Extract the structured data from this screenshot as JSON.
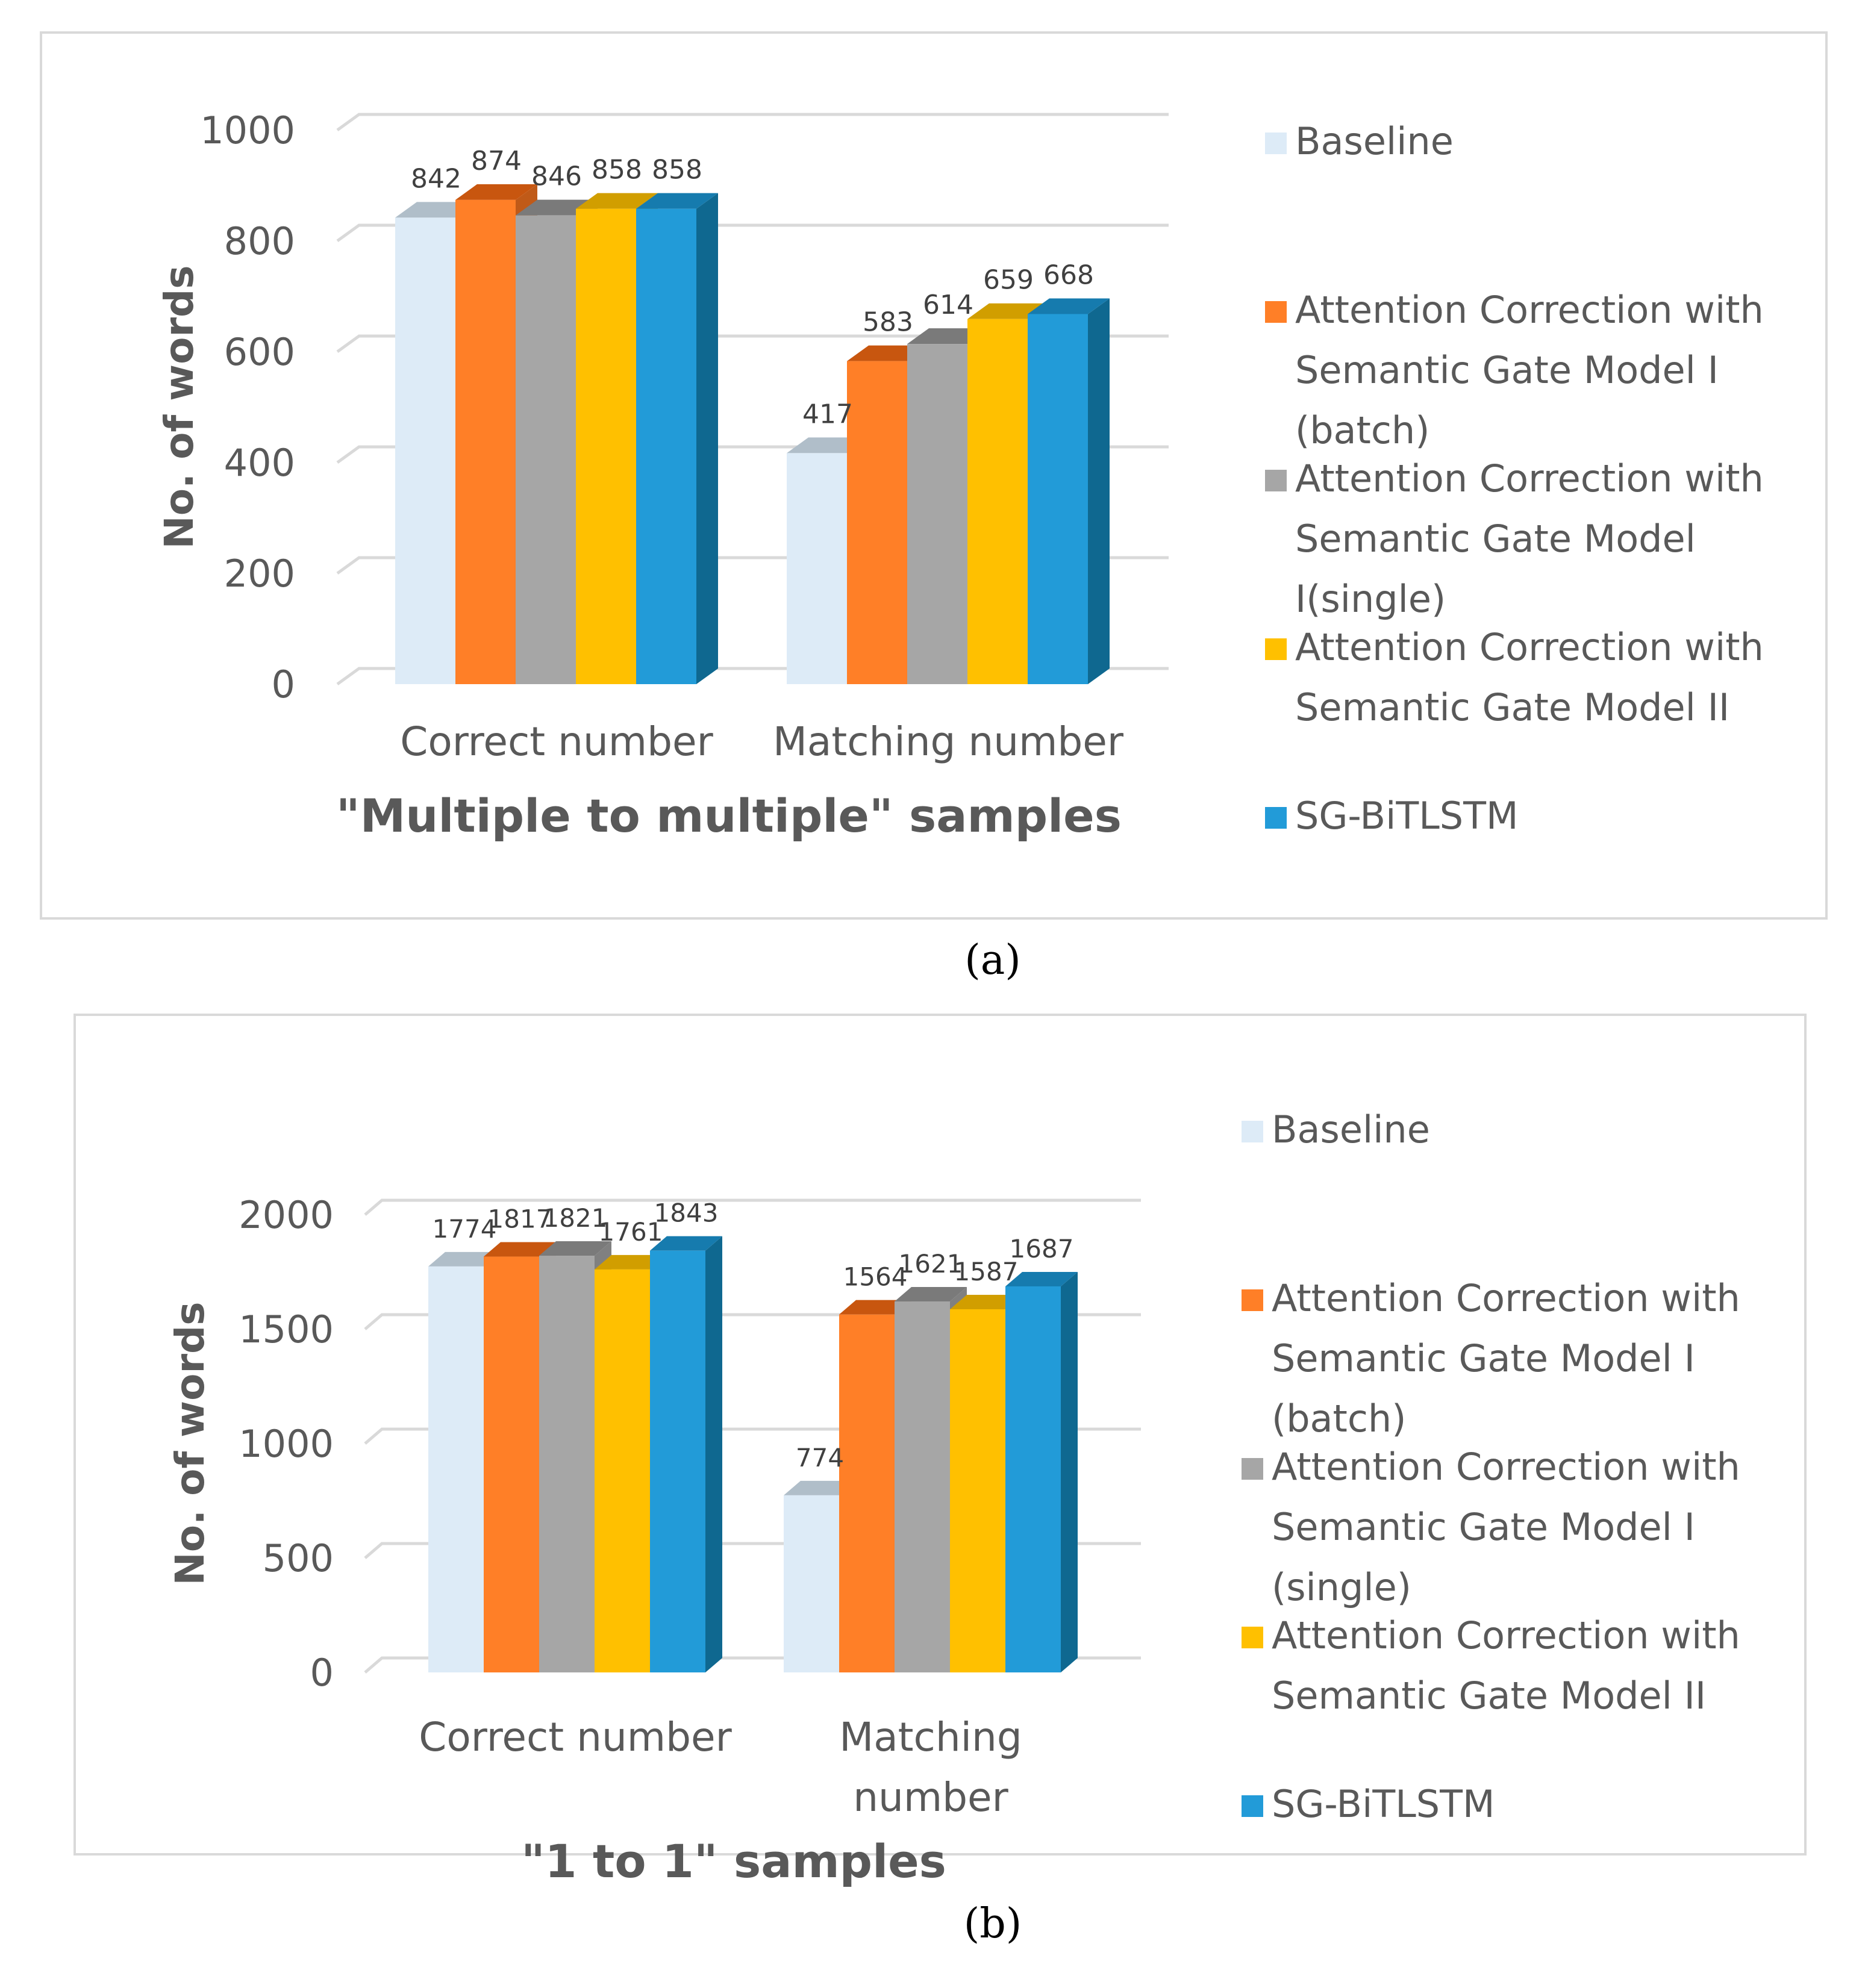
{
  "chart_data": [
    {
      "type": "bar",
      "panel_label": "(a)",
      "title": "\"Multiple to multiple\" samples",
      "ylabel": "No. of words",
      "xlabel": "",
      "categories": [
        "Correct number",
        "Matching number"
      ],
      "ylim": [
        0,
        1000
      ],
      "yticks": [
        0,
        200,
        400,
        600,
        800,
        1000
      ],
      "grid": true,
      "legend_position": "right",
      "series": [
        {
          "name": "Baseline",
          "values": [
            842,
            417
          ]
        },
        {
          "name": "Attention Correction with Semantic Gate Model I (batch)",
          "values": [
            874,
            583
          ]
        },
        {
          "name": "Attention Correction with Semantic Gate Model I(single)",
          "values": [
            846,
            614
          ]
        },
        {
          "name": "Attention Correction with Semantic Gate Model II",
          "values": [
            858,
            659
          ]
        },
        {
          "name": "SG-BiTLSTM",
          "values": [
            858,
            668
          ]
        }
      ],
      "legend_lines": [
        [
          "Baseline"
        ],
        [
          "Attention Correction with",
          "Semantic Gate Model I",
          "(batch)"
        ],
        [
          "Attention Correction with",
          "Semantic Gate Model",
          "I(single)"
        ],
        [
          "Attention Correction with",
          "Semantic Gate Model II"
        ],
        [
          "SG-BiTLSTM"
        ]
      ],
      "category_lines": [
        [
          "Correct number"
        ],
        [
          "Matching number"
        ]
      ]
    },
    {
      "type": "bar",
      "panel_label": "(b)",
      "title": "\"1 to 1\" samples",
      "ylabel": "No. of words",
      "xlabel": "",
      "categories": [
        "Correct number",
        "Matching number"
      ],
      "ylim": [
        0,
        2000
      ],
      "yticks": [
        0,
        500,
        1000,
        1500,
        2000
      ],
      "grid": true,
      "legend_position": "right",
      "series": [
        {
          "name": "Baseline",
          "values": [
            1774,
            774
          ]
        },
        {
          "name": "Attention Correction with Semantic Gate Model I (batch)",
          "values": [
            1817,
            1564
          ]
        },
        {
          "name": "Attention Correction with Semantic Gate Model I (single)",
          "values": [
            1821,
            1621
          ]
        },
        {
          "name": "Attention Correction with Semantic Gate Model II",
          "values": [
            1761,
            1587
          ]
        },
        {
          "name": "SG-BiTLSTM",
          "values": [
            1843,
            1687
          ]
        }
      ],
      "legend_lines": [
        [
          "Baseline"
        ],
        [
          "Attention Correction with",
          "Semantic Gate Model I",
          "(batch)"
        ],
        [
          "Attention Correction with",
          "Semantic Gate Model I",
          "(single)"
        ],
        [
          "Attention Correction with",
          "Semantic Gate Model II"
        ],
        [
          "SG-BiTLSTM"
        ]
      ],
      "category_lines": [
        [
          "Correct number"
        ],
        [
          "Matching",
          "number"
        ]
      ]
    }
  ],
  "colors": {
    "series": [
      "#DDEBF7",
      "#FF7F27",
      "#A6A6A6",
      "#FFC000",
      "#229BD8"
    ],
    "series_top": [
      "#B0BEC9",
      "#C8560F",
      "#7A7A7A",
      "#D19E00",
      "#167BAE"
    ],
    "series_side": [
      "#B8C4CE",
      "#C05A18",
      "#808080",
      "#BF9000",
      "#0F6890"
    ],
    "axis_text": "#595959",
    "value_label": "#404040",
    "grid": "#d9d9d9",
    "border": "#d9d9d9"
  }
}
